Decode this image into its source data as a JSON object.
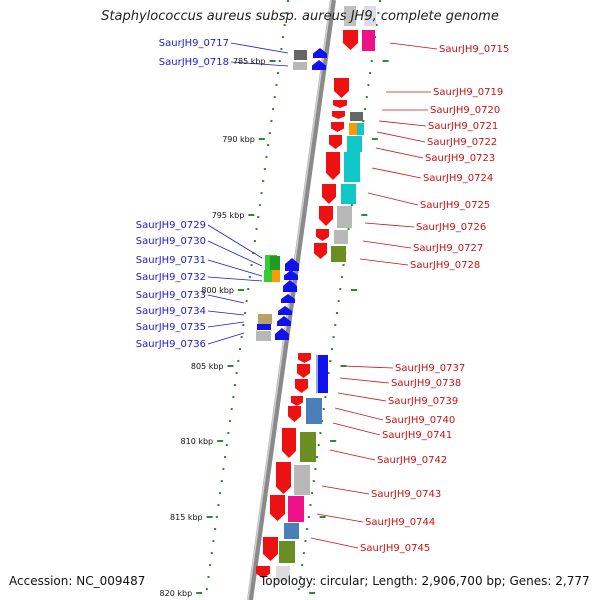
{
  "title": "Staphylococcus aureus subsp. aureus JH9, complete genome",
  "accession": "Accession: NC_009487",
  "topology": "Topology: circular; Length: 2,906,700 bp; Genes: 2,777",
  "colors": {
    "forward_label": "#1b1bd0",
    "reverse_label": "#cc1111"
  },
  "kbp_ticks": [
    "785 kbp",
    "790 kbp",
    "795 kbp",
    "800 kbp",
    "805 kbp",
    "810 kbp",
    "815 kbp",
    "820 kbp"
  ],
  "left_labels": [
    "SaurJH9_0717",
    "SaurJH9_0718",
    "SaurJH9_0729",
    "SaurJH9_0730",
    "SaurJH9_0731",
    "SaurJH9_0732",
    "SaurJH9_0733",
    "SaurJH9_0734",
    "SaurJH9_0735",
    "SaurJH9_0736"
  ],
  "right_labels": [
    "SaurJH9_0715",
    "SaurJH9_0719",
    "SaurJH9_0720",
    "SaurJH9_0721",
    "SaurJH9_0722",
    "SaurJH9_0723",
    "SaurJH9_0724",
    "SaurJH9_0725",
    "SaurJH9_0726",
    "SaurJH9_0727",
    "SaurJH9_0728",
    "SaurJH9_0737",
    "SaurJH9_0738",
    "SaurJH9_0739",
    "SaurJH9_0740",
    "SaurJH9_0741",
    "SaurJH9_0742",
    "SaurJH9_0743",
    "SaurJH9_0744",
    "SaurJH9_0745"
  ]
}
